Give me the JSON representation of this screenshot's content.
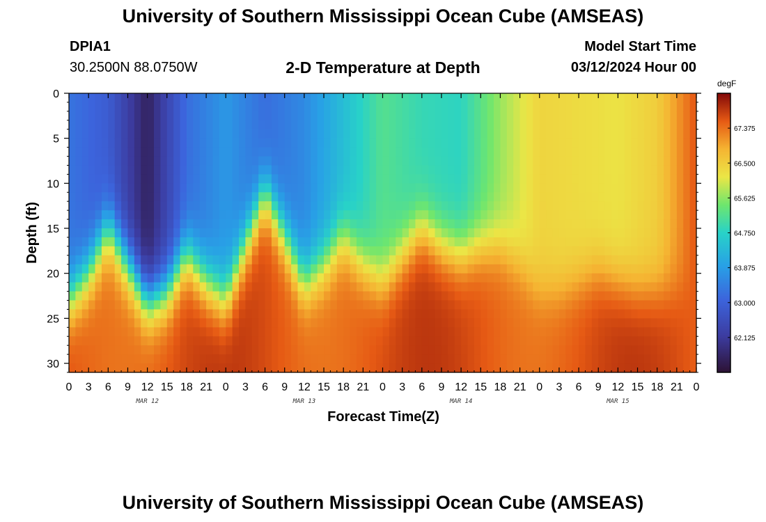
{
  "header": {
    "title": "University of Southern Mississippi Ocean Cube (AMSEAS)",
    "station_name": "DPIA1",
    "station_coords": "30.2500N  88.0750W",
    "chart_title": "2-D Temperature at Depth",
    "model_label": "Model Start Time",
    "model_date": "03/12/2024 Hour 00"
  },
  "footer": {
    "title": "University of Southern Mississippi Ocean Cube (AMSEAS)"
  },
  "chart_data": {
    "type": "heatmap",
    "title": "2-D Temperature at Depth",
    "xlabel": "Forecast Time(Z)",
    "ylabel": "Depth (ft)",
    "x_range_hours": [
      0,
      96
    ],
    "x_ticks": [
      "0",
      "3",
      "6",
      "9",
      "12",
      "15",
      "18",
      "21",
      "0",
      "3",
      "6",
      "9",
      "12",
      "15",
      "18",
      "21",
      "0",
      "3",
      "6",
      "9",
      "12",
      "15",
      "18",
      "21",
      "0",
      "3",
      "6",
      "9",
      "12",
      "15",
      "18",
      "21",
      "0"
    ],
    "day_labels": [
      {
        "label": "MAR 12",
        "hour": 12
      },
      {
        "label": "MAR 13",
        "hour": 36
      },
      {
        "label": "MAR 14",
        "hour": 60
      },
      {
        "label": "MAR 15",
        "hour": 84
      }
    ],
    "y_range": [
      0,
      31
    ],
    "y_ticks": [
      0,
      5,
      10,
      15,
      20,
      25,
      30
    ],
    "colorbar": {
      "unit": "degF",
      "range": [
        61.25,
        68.25
      ],
      "ticks": [
        "62.125",
        "63.000",
        "63.875",
        "64.750",
        "65.625",
        "66.500",
        "67.375"
      ]
    },
    "thermocline_depth_ft": [
      {
        "hour": 0,
        "depth": 23
      },
      {
        "hour": 3,
        "depth": 20
      },
      {
        "hour": 6,
        "depth": 15
      },
      {
        "hour": 9,
        "depth": 19
      },
      {
        "hour": 12,
        "depth": 23
      },
      {
        "hour": 15,
        "depth": 22
      },
      {
        "hour": 18,
        "depth": 18
      },
      {
        "hour": 21,
        "depth": 21
      },
      {
        "hour": 24,
        "depth": 23
      },
      {
        "hour": 27,
        "depth": 17
      },
      {
        "hour": 30,
        "depth": 11
      },
      {
        "hour": 33,
        "depth": 16
      },
      {
        "hour": 36,
        "depth": 21
      },
      {
        "hour": 39,
        "depth": 19
      },
      {
        "hour": 42,
        "depth": 16
      },
      {
        "hour": 45,
        "depth": 19
      },
      {
        "hour": 48,
        "depth": 21
      },
      {
        "hour": 51,
        "depth": 18
      },
      {
        "hour": 54,
        "depth": 15
      },
      {
        "hour": 57,
        "depth": 17
      },
      {
        "hour": 60,
        "depth": 18
      },
      {
        "hour": 63,
        "depth": 17
      },
      {
        "hour": 66,
        "depth": 17
      },
      {
        "hour": 69,
        "depth": 19
      },
      {
        "hour": 72,
        "depth": 22
      },
      {
        "hour": 75,
        "depth": 22
      },
      {
        "hour": 78,
        "depth": 21
      },
      {
        "hour": 81,
        "depth": 20
      },
      {
        "hour": 84,
        "depth": 21
      },
      {
        "hour": 87,
        "depth": 22
      },
      {
        "hour": 90,
        "depth": 22
      },
      {
        "hour": 93,
        "depth": 22
      },
      {
        "hour": 96,
        "depth": 22
      }
    ],
    "surface_temp_degF": [
      {
        "hour": 0,
        "temp": 63.3
      },
      {
        "hour": 6,
        "temp": 62.9
      },
      {
        "hour": 12,
        "temp": 61.6
      },
      {
        "hour": 18,
        "temp": 63.2
      },
      {
        "hour": 24,
        "temp": 63.8
      },
      {
        "hour": 30,
        "temp": 63.2
      },
      {
        "hour": 36,
        "temp": 63.6
      },
      {
        "hour": 42,
        "temp": 64.4
      },
      {
        "hour": 48,
        "temp": 65.2
      },
      {
        "hour": 54,
        "temp": 64.9
      },
      {
        "hour": 60,
        "temp": 64.8
      },
      {
        "hour": 66,
        "temp": 65.7
      },
      {
        "hour": 72,
        "temp": 66.4
      },
      {
        "hour": 78,
        "temp": 66.3
      },
      {
        "hour": 84,
        "temp": 66.2
      },
      {
        "hour": 90,
        "temp": 66.5
      },
      {
        "hour": 96,
        "temp": 67.6
      }
    ],
    "bottom_temp_degF": 67.6
  }
}
